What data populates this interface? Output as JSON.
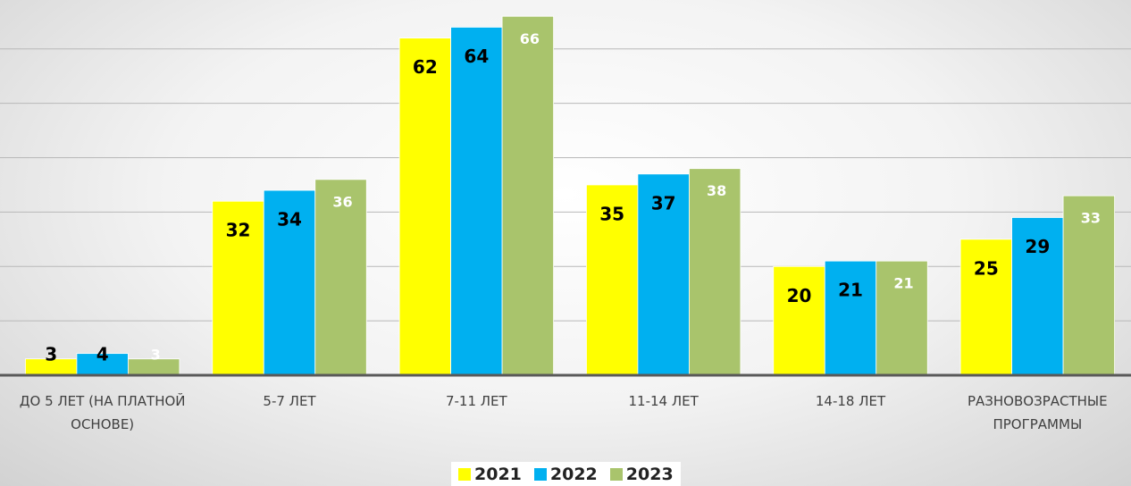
{
  "chart_data": {
    "type": "bar",
    "categories": [
      "ДО 5 ЛЕТ (НА ПЛАТНОЙ ОСНОВЕ)",
      "5-7 ЛЕТ",
      "7-11 ЛЕТ",
      "11-14 ЛЕТ",
      "14-18 ЛЕТ",
      "РАЗНОВОЗРАСТНЫЕ ПРОГРАММЫ"
    ],
    "series": [
      {
        "name": "2021",
        "color": "#ffff00",
        "label_color": "#000000",
        "values": [
          3,
          32,
          62,
          35,
          20,
          25
        ]
      },
      {
        "name": "2022",
        "color": "#00b0f0",
        "label_color": "#000000",
        "values": [
          4,
          34,
          64,
          37,
          21,
          29
        ]
      },
      {
        "name": "2023",
        "color": "#a9c46c",
        "label_color": "#ffffff",
        "values": [
          3,
          36,
          66,
          38,
          21,
          33
        ]
      }
    ],
    "ylim": [
      0,
      69
    ],
    "yticks": [
      0,
      10,
      20,
      30,
      40,
      50,
      60
    ],
    "grid": true,
    "legend": "bottom"
  }
}
